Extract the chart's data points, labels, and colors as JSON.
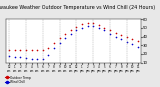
{
  "title": "Milwaukee Weather Outdoor Temperature vs Wind Chill (24 Hours)",
  "title_fontsize": 3.5,
  "bg_color": "#e8e8e8",
  "plot_bg_color": "#ffffff",
  "hours": [
    0,
    1,
    2,
    3,
    4,
    5,
    6,
    7,
    8,
    9,
    10,
    11,
    12,
    13,
    14,
    15,
    16,
    17,
    18,
    19,
    20,
    21,
    22,
    23
  ],
  "x_tick_labels": [
    "12",
    "1",
    "2",
    "3",
    "4",
    "5",
    "6",
    "7",
    "8",
    "9",
    "10",
    "11",
    "12",
    "1",
    "2",
    "3",
    "4",
    "5",
    "6",
    "7",
    "8",
    "9",
    "10",
    "11"
  ],
  "x_tick_sublabels": [
    "am",
    "am",
    "am",
    "am",
    "am",
    "am",
    "am",
    "am",
    "am",
    "am",
    "am",
    "am",
    "pm",
    "pm",
    "pm",
    "pm",
    "pm",
    "pm",
    "pm",
    "pm",
    "pm",
    "pm",
    "pm",
    "pm"
  ],
  "temp": [
    25,
    25,
    25,
    24,
    24,
    24,
    24,
    27,
    33,
    38,
    43,
    47,
    51,
    54,
    55,
    55,
    53,
    50,
    47,
    44,
    42,
    40,
    37,
    35
  ],
  "wind_chill": [
    18,
    17,
    16,
    15,
    14,
    14,
    14,
    19,
    27,
    33,
    38,
    43,
    47,
    50,
    52,
    52,
    50,
    47,
    43,
    40,
    37,
    34,
    31,
    28
  ],
  "ylim": [
    10,
    60
  ],
  "yticks": [
    10,
    20,
    30,
    40,
    50,
    60
  ],
  "temp_color": "#cc0000",
  "wind_chill_color": "#0000cc",
  "grid_color": "#888888",
  "grid_positions": [
    0,
    3,
    6,
    9,
    12,
    15,
    18,
    21
  ],
  "marker_size": 1.2,
  "legend_temp": "Outdoor Temp",
  "legend_wc": "Wind Chill"
}
